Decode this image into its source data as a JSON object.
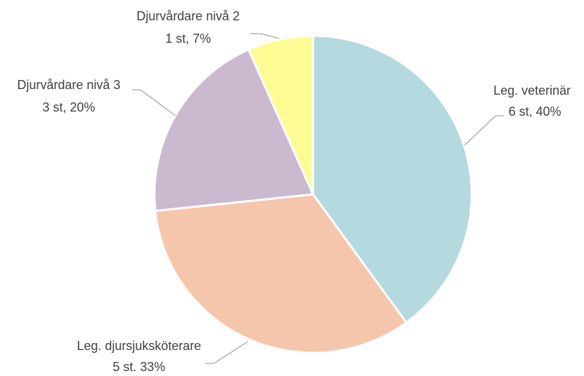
{
  "chart_data": {
    "type": "pie",
    "categories": [
      "Leg. veterinär",
      "Leg. djursjuksköterare",
      "Djurvårdare nivå 3",
      "Djurvårdare nivå 2"
    ],
    "values": [
      6,
      5,
      3,
      1
    ],
    "value_labels": [
      "6 st, 40%",
      "5 st. 33%",
      "3 st, 20%",
      "1 st, 7%"
    ],
    "colors": [
      "#b4d9de",
      "#f5c6ab",
      "#cbb9cf",
      "#fdfc94"
    ]
  }
}
